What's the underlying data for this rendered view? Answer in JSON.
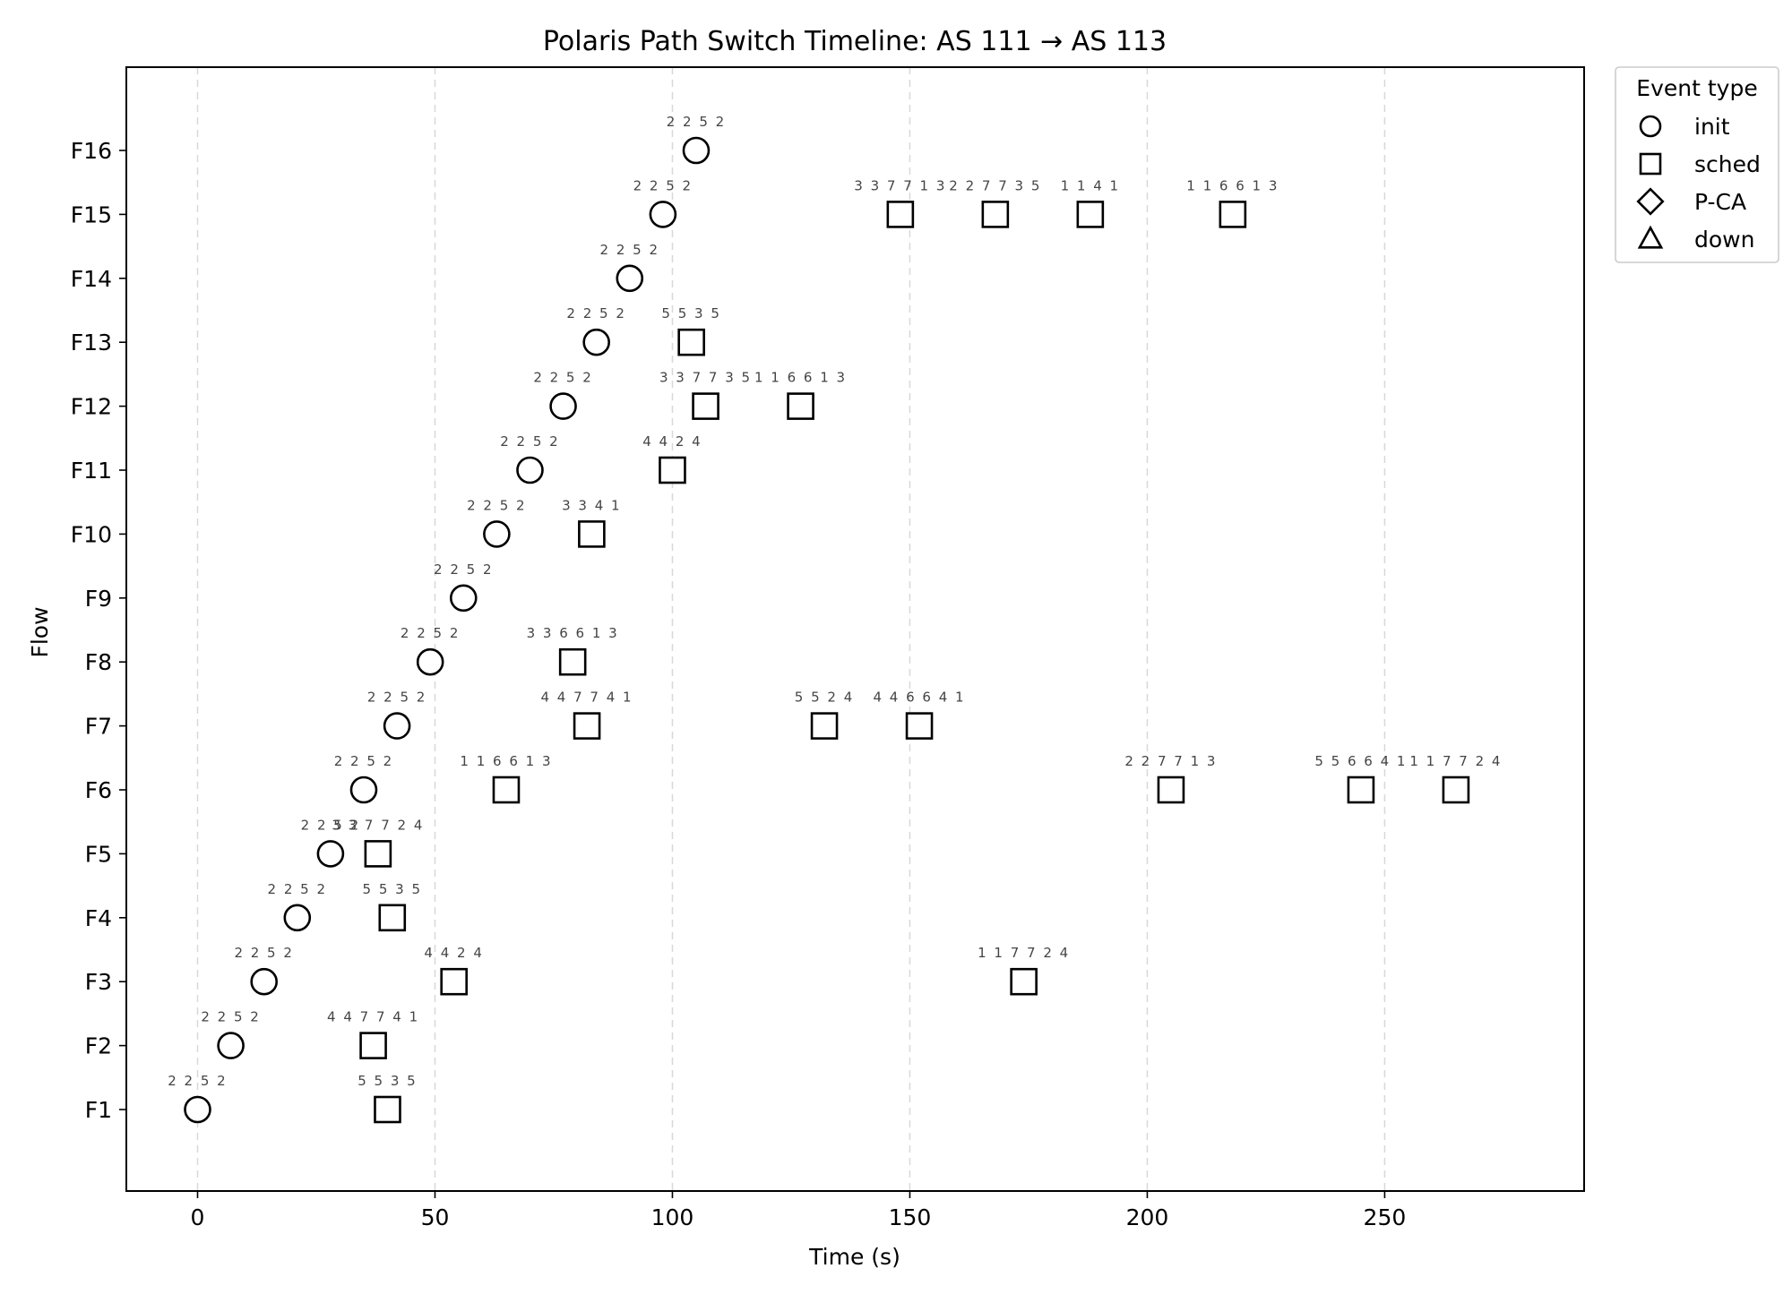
{
  "chart_data": {
    "type": "scatter",
    "title": "Polaris Path Switch Timeline: AS 111 → AS 113",
    "xlabel": "Time (s)",
    "ylabel": "Flow",
    "xlim": [
      -15,
      292
    ],
    "x_ticks": [
      0,
      50,
      100,
      150,
      200,
      250
    ],
    "categories": [
      "F1",
      "F2",
      "F3",
      "F4",
      "F5",
      "F6",
      "F7",
      "F8",
      "F9",
      "F10",
      "F11",
      "F12",
      "F13",
      "F14",
      "F15",
      "F16"
    ],
    "grid": {
      "x": true,
      "y": false
    },
    "legend": {
      "title": "Event type",
      "placement": "outside-top-right",
      "entries": [
        {
          "label": "init",
          "marker": "circle"
        },
        {
          "label": "sched",
          "marker": "square"
        },
        {
          "label": "P-CA",
          "marker": "diamond"
        },
        {
          "label": "down",
          "marker": "triangle"
        }
      ]
    },
    "series": [
      {
        "name": "init",
        "marker": "circle",
        "points": [
          {
            "flow": "F1",
            "x": 0,
            "label": "2 2 5 2"
          },
          {
            "flow": "F2",
            "x": 7,
            "label": "2 2 5 2"
          },
          {
            "flow": "F3",
            "x": 14,
            "label": "2 2 5 2"
          },
          {
            "flow": "F4",
            "x": 21,
            "label": "2 2 5 2"
          },
          {
            "flow": "F5",
            "x": 28,
            "label": "2 2 5 2"
          },
          {
            "flow": "F6",
            "x": 35,
            "label": "2 2 5 2"
          },
          {
            "flow": "F7",
            "x": 42,
            "label": "2 2 5 2"
          },
          {
            "flow": "F8",
            "x": 49,
            "label": "2 2 5 2"
          },
          {
            "flow": "F9",
            "x": 56,
            "label": "2 2 5 2"
          },
          {
            "flow": "F10",
            "x": 63,
            "label": "2 2 5 2"
          },
          {
            "flow": "F11",
            "x": 70,
            "label": "2 2 5 2"
          },
          {
            "flow": "F12",
            "x": 77,
            "label": "2 2 5 2"
          },
          {
            "flow": "F13",
            "x": 84,
            "label": "2 2 5 2"
          },
          {
            "flow": "F14",
            "x": 91,
            "label": "2 2 5 2"
          },
          {
            "flow": "F15",
            "x": 98,
            "label": "2 2 5 2"
          },
          {
            "flow": "F16",
            "x": 105,
            "label": "2 2 5 2"
          }
        ]
      },
      {
        "name": "sched",
        "marker": "square",
        "points": [
          {
            "flow": "F1",
            "x": 40,
            "label": "5 5 3 5"
          },
          {
            "flow": "F2",
            "x": 37,
            "label": "4 4 7 7 4 1"
          },
          {
            "flow": "F3",
            "x": 54,
            "label": "4 4 2 4"
          },
          {
            "flow": "F3",
            "x": 174,
            "label": "1 1 7 7 2 4"
          },
          {
            "flow": "F4",
            "x": 41,
            "label": "5 5 3 5"
          },
          {
            "flow": "F5",
            "x": 38,
            "label": "3 3 7 7 2 4"
          },
          {
            "flow": "F6",
            "x": 65,
            "label": "1 1 6 6 1 3"
          },
          {
            "flow": "F6",
            "x": 205,
            "label": "2 2 7 7 1 3"
          },
          {
            "flow": "F6",
            "x": 245,
            "label": "5 5 6 6 4 1"
          },
          {
            "flow": "F6",
            "x": 265,
            "label": "1 1 7 7 2 4"
          },
          {
            "flow": "F7",
            "x": 82,
            "label": "4 4 7 7 4 1"
          },
          {
            "flow": "F7",
            "x": 132,
            "label": "5 5 2 4"
          },
          {
            "flow": "F7",
            "x": 152,
            "label": "4 4 6 6 4 1"
          },
          {
            "flow": "F8",
            "x": 79,
            "label": "3 3 6 6 1 3"
          },
          {
            "flow": "F10",
            "x": 83,
            "label": "3 3 4 1"
          },
          {
            "flow": "F11",
            "x": 100,
            "label": "4 4 2 4"
          },
          {
            "flow": "F12",
            "x": 107,
            "label": "3 3 7 7 3 5"
          },
          {
            "flow": "F12",
            "x": 127,
            "label": "1 1 6 6 1 3"
          },
          {
            "flow": "F13",
            "x": 104,
            "label": "5 5 3 5"
          },
          {
            "flow": "F15",
            "x": 148,
            "label": "3 3 7 7 1 3"
          },
          {
            "flow": "F15",
            "x": 168,
            "label": "2 2 7 7 3 5"
          },
          {
            "flow": "F15",
            "x": 188,
            "label": "1 1 4 1"
          },
          {
            "flow": "F15",
            "x": 218,
            "label": "1 1 6 6 1 3"
          }
        ]
      }
    ]
  }
}
